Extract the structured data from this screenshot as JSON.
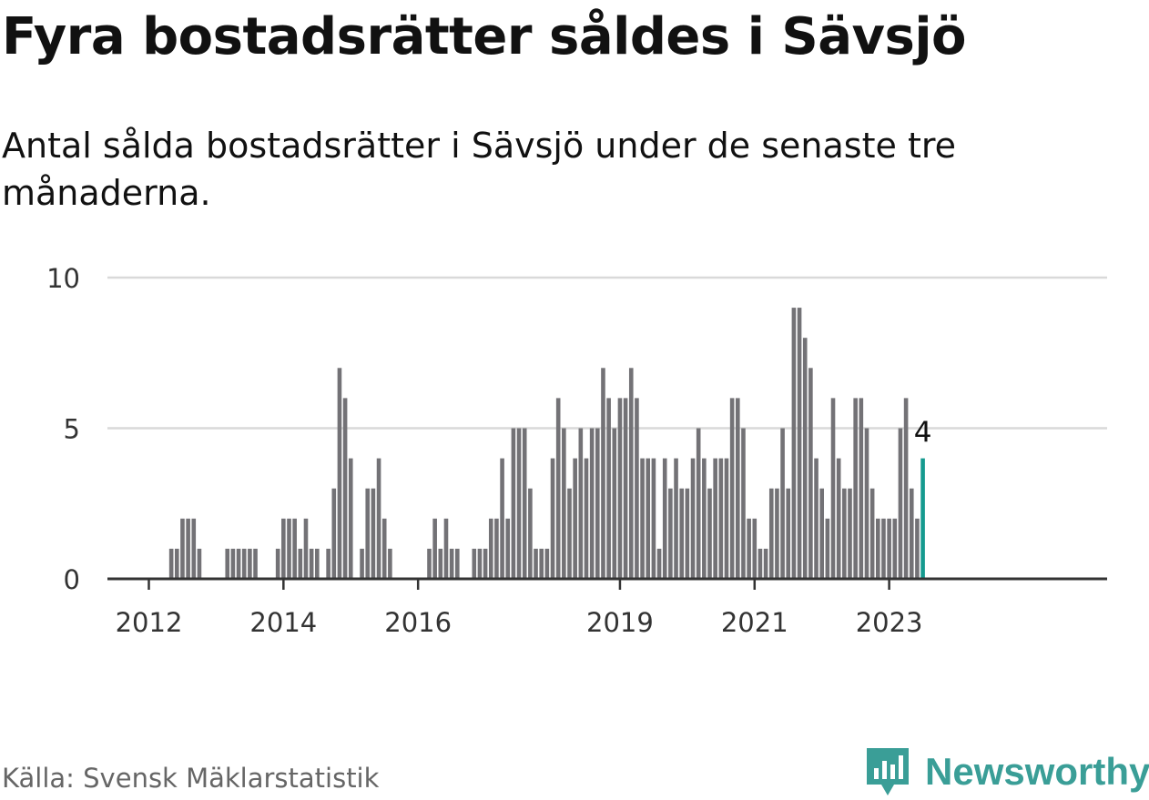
{
  "header": {
    "title": "Fyra bostadsrätter såldes i Sävsjö",
    "subtitle": "Antal sålda bostadsrätter i Sävsjö under de senaste tre månaderna."
  },
  "footer": {
    "source": "Källa: Svensk Mäklarstatistik",
    "brand": "Newsworthy"
  },
  "colors": {
    "bar": "#737276",
    "highlight": "#159a8f",
    "grid": "#d9d9d9",
    "axis": "#333333",
    "brand": "#3a9e97"
  },
  "chart_data": {
    "type": "bar",
    "title": "Fyra bostadsrätter såldes i Sävsjö",
    "xlabel": "",
    "ylabel": "",
    "ylim": [
      0,
      10
    ],
    "yticks": [
      0,
      5,
      10
    ],
    "grid": true,
    "start": "2012-01",
    "end": "2023-01",
    "xticks": [
      "2012",
      "2014",
      "2016",
      "2019",
      "2021",
      "2023"
    ],
    "highlight_label": "4",
    "values": [
      0,
      0,
      0,
      0,
      1,
      1,
      2,
      2,
      2,
      1,
      0,
      0,
      0,
      0,
      1,
      1,
      1,
      1,
      1,
      1,
      0,
      0,
      0,
      1,
      2,
      2,
      2,
      1,
      2,
      1,
      1,
      0,
      1,
      3,
      7,
      6,
      4,
      0,
      1,
      3,
      3,
      4,
      2,
      1,
      0,
      0,
      0,
      0,
      0,
      0,
      1,
      2,
      1,
      2,
      1,
      1,
      0,
      0,
      1,
      1,
      1,
      2,
      2,
      4,
      2,
      5,
      5,
      5,
      3,
      1,
      1,
      1,
      4,
      6,
      5,
      3,
      4,
      5,
      4,
      5,
      5,
      7,
      6,
      5,
      6,
      6,
      7,
      6,
      4,
      4,
      4,
      1,
      4,
      3,
      4,
      3,
      3,
      4,
      5,
      4,
      3,
      4,
      4,
      4,
      6,
      6,
      5,
      2,
      2,
      1,
      1,
      3,
      3,
      5,
      3,
      9,
      9,
      8,
      7,
      4,
      3,
      2,
      6,
      4,
      3,
      3,
      6,
      6,
      5,
      3,
      2,
      2,
      2,
      2,
      5,
      6,
      3,
      2,
      4
    ]
  }
}
